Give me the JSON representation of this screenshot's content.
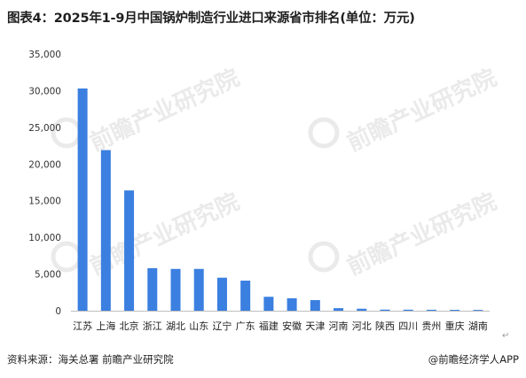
{
  "header": {
    "title": "图表4：2025年1-9月中国锅炉制造行业进口来源省市排名(单位：万元)"
  },
  "footer": {
    "source": "资料来源：海关总署 前瞻产业研究院",
    "brand": "@前瞻经济学人APP",
    "return_mark": "↵"
  },
  "colors": {
    "bar": "#3b7fe0",
    "axis": "#bfbfbf",
    "watermark": "#d9d9d9"
  },
  "watermark": {
    "text": "前瞻产业研究院"
  },
  "chart_data": {
    "type": "bar",
    "categories": [
      "江苏",
      "上海",
      "北京",
      "浙江",
      "湖北",
      "山东",
      "辽宁",
      "广东",
      "福建",
      "安徽",
      "天津",
      "河南",
      "河北",
      "陕西",
      "四川",
      "贵州",
      "重庆",
      "湖南"
    ],
    "values": [
      30300,
      21900,
      16400,
      5800,
      5700,
      5700,
      4500,
      4100,
      1900,
      1700,
      1450,
      350,
      270,
      150,
      140,
      130,
      120,
      110
    ],
    "yticks": [
      "0",
      "5,000",
      "10,000",
      "15,000",
      "20,000",
      "25,000",
      "30,000",
      "35,000"
    ],
    "ylim": [
      0,
      35000
    ],
    "grid": false,
    "xlabel": "",
    "ylabel": ""
  }
}
